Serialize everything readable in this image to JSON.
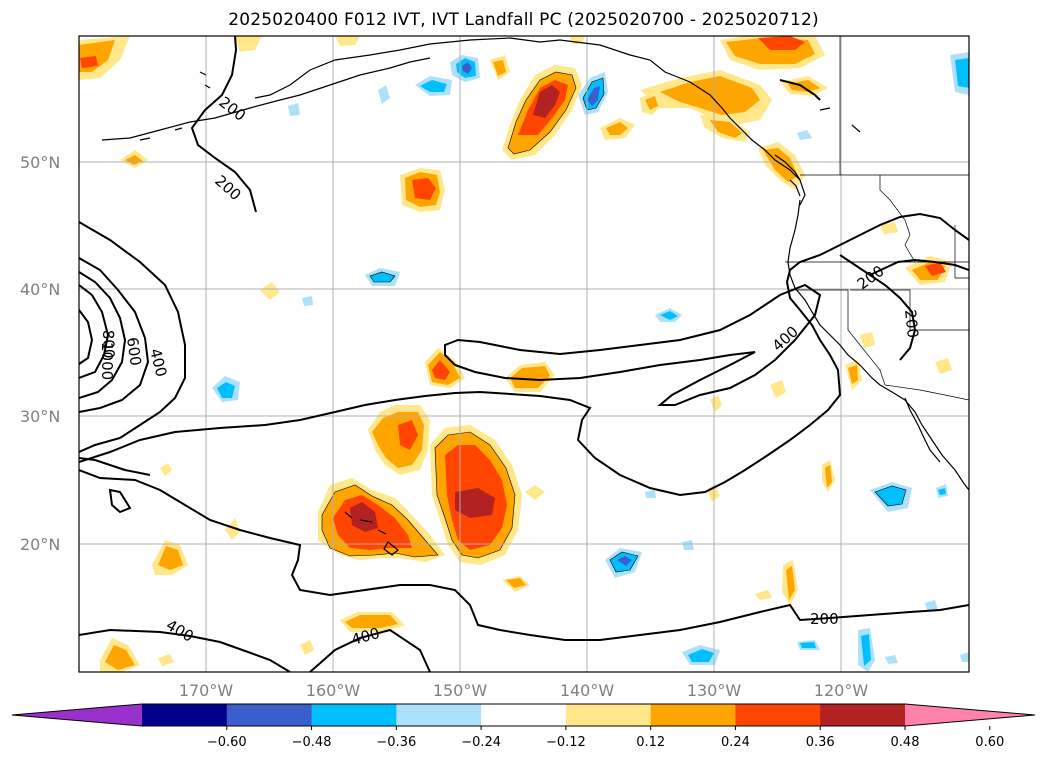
{
  "title": "2025020400 F012 IVT, IVT Landfall PC (2025020700 - 2025020712)",
  "lat_labels": [
    "50°N",
    "40°N",
    "30°N",
    "20°N"
  ],
  "lon_labels": [
    "170°W",
    "160°W",
    "150°W",
    "140°W",
    "130°W",
    "120°W"
  ],
  "colorbar": {
    "tick_labels": [
      "−0.60",
      "−0.48",
      "−0.36",
      "−0.24",
      "−0.12",
      "0.12",
      "0.24",
      "0.36",
      "0.48",
      "0.60"
    ],
    "colors": [
      "#9932CC",
      "#00008B",
      "#3A5FCD",
      "#00BFFF",
      "#ADE1FA",
      "#FFFFFF",
      "#FFE78A",
      "#FFA500",
      "#FF4500",
      "#B22222",
      "#FF82AB"
    ]
  },
  "contour_labels": {
    "c200_nw_a": "200",
    "c200_nw_b": "200",
    "c800": "800",
    "c1000": "1000",
    "c600": "600",
    "c400_w": "400",
    "c400_sw": "400",
    "c400_s": "400",
    "c400_e": "400",
    "c200_e": "200",
    "c200_e2": "200",
    "c200_se": "200"
  }
}
